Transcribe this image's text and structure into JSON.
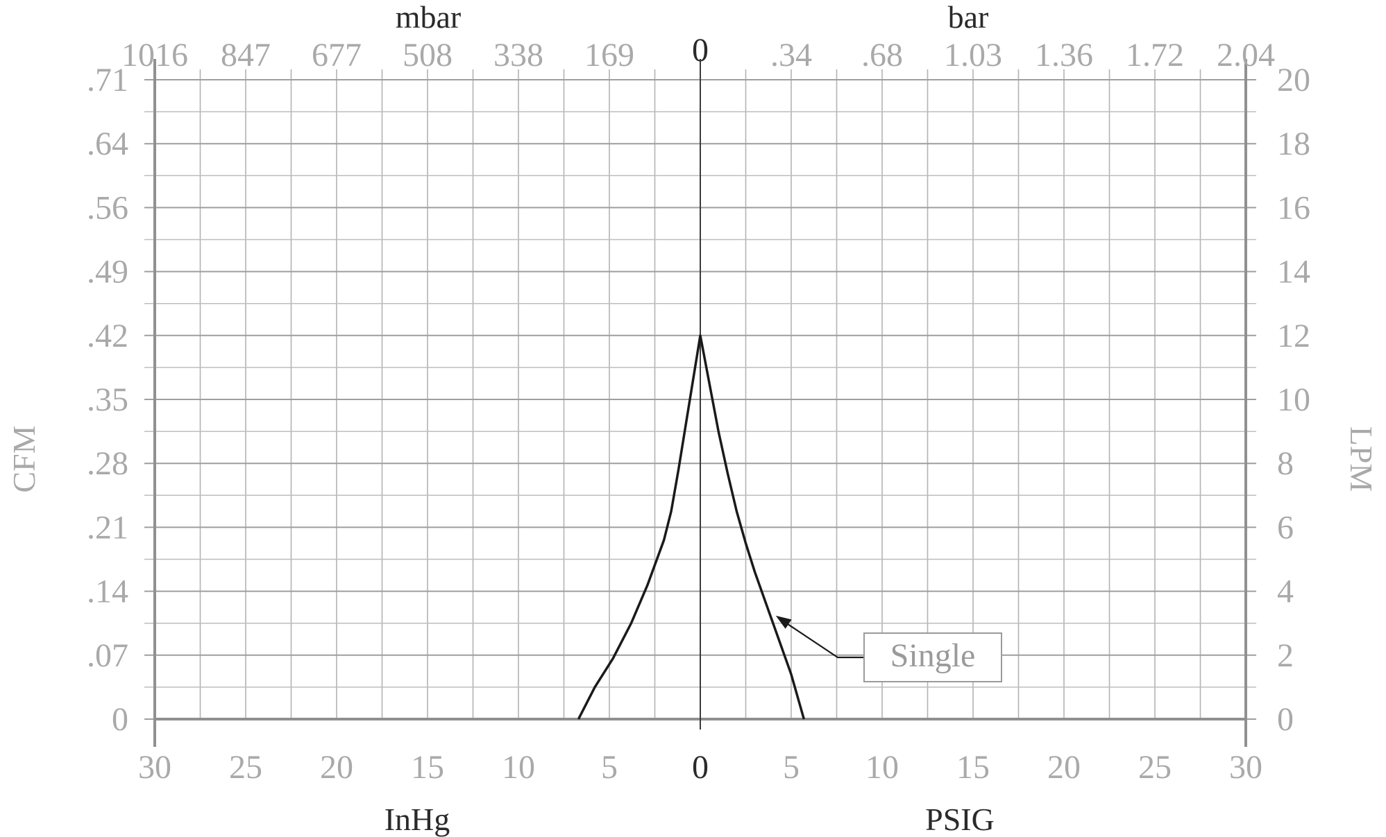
{
  "chart_data": {
    "type": "line",
    "axes": {
      "x_bottom_left": {
        "label": "InHg",
        "ticks": [
          "30",
          "25",
          "20",
          "15",
          "10",
          "5"
        ]
      },
      "x_bottom_right": {
        "label": "PSIG",
        "ticks": [
          "5",
          "10",
          "15",
          "20",
          "25",
          "30"
        ]
      },
      "x_bottom_center": "0",
      "x_top_left": {
        "label": "mbar",
        "ticks": [
          "1016",
          "847",
          "677",
          "508",
          "338",
          "169"
        ]
      },
      "x_top_right": {
        "label": "bar",
        "ticks": [
          ".34",
          ".68",
          "1.03",
          "1.36",
          "1.72",
          "2.04"
        ]
      },
      "x_top_center": "0",
      "y_left": {
        "label": "CFM",
        "ticks": [
          "0",
          ".07",
          ".14",
          ".21",
          ".28",
          ".35",
          ".42",
          ".49",
          ".56",
          ".64",
          ".71"
        ]
      },
      "y_right": {
        "label": "LPM",
        "ticks": [
          "0",
          "2",
          "4",
          "6",
          "8",
          "10",
          "12",
          "14",
          "16",
          "18",
          "20"
        ]
      },
      "xlim": [
        -30,
        30
      ],
      "ylim_lpm": [
        0,
        20
      ]
    },
    "grid": true,
    "series": [
      {
        "name": "Single",
        "x": [
          -6.7,
          -5.8,
          -4.8,
          -3.8,
          -2.9,
          -2.0,
          -1.6,
          -1.2,
          -0.8,
          -0.4,
          0,
          0.5,
          1.0,
          1.5,
          2.0,
          2.5,
          3.0,
          4.0,
          5.0,
          5.7
        ],
        "y": [
          0,
          1.0,
          1.9,
          3.0,
          4.2,
          5.6,
          6.5,
          7.8,
          9.2,
          10.6,
          12.0,
          10.5,
          9.0,
          7.7,
          6.5,
          5.5,
          4.6,
          3.0,
          1.4,
          0
        ]
      }
    ],
    "annotations": [
      {
        "text": "Single",
        "target_x": 4.0,
        "target_y": 3.3
      }
    ]
  }
}
